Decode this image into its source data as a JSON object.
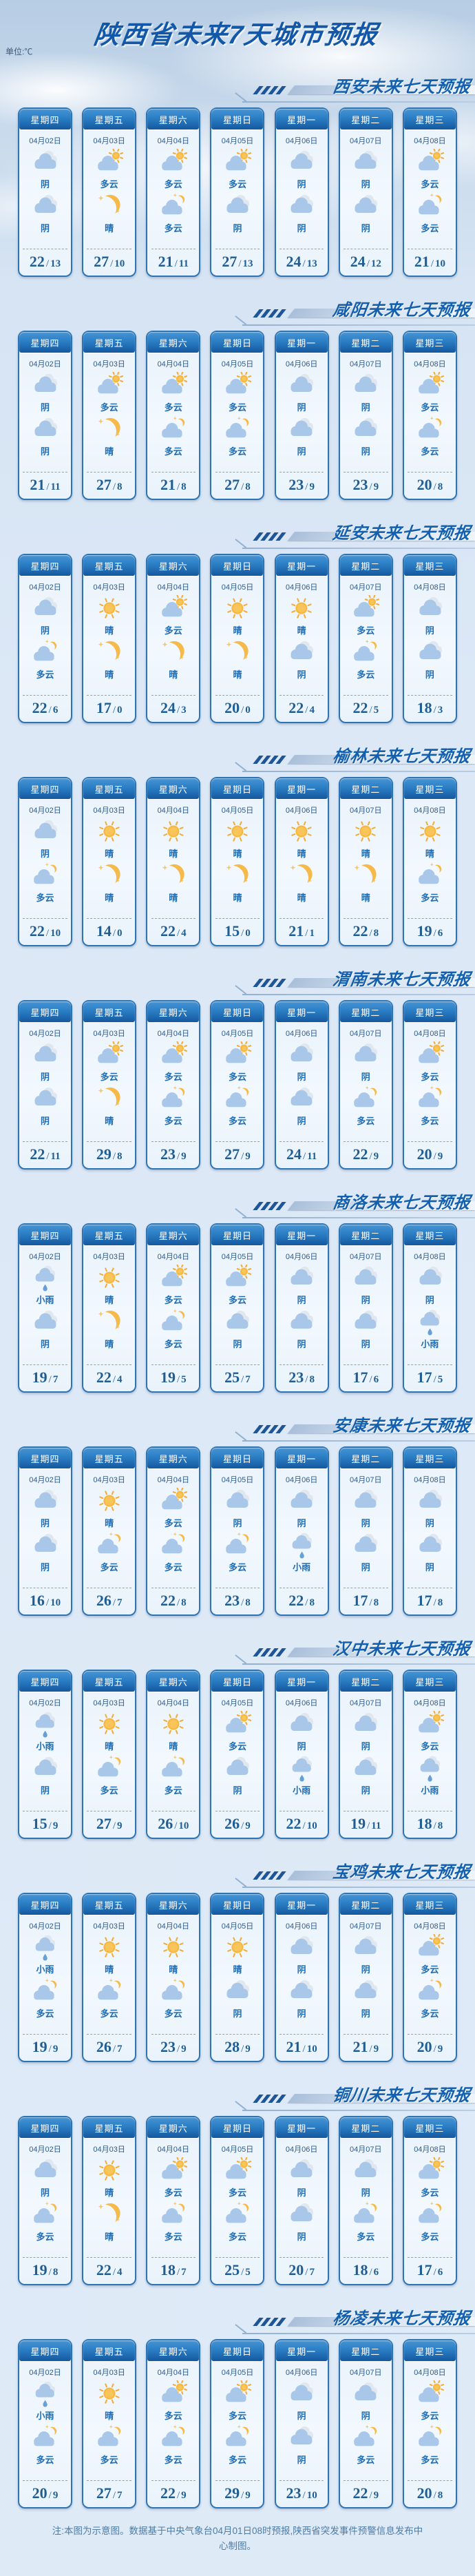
{
  "unit_label": "单位:℃",
  "footer": {
    "note": "注:本图为示意图。数据基于中央气象台04月01日08时预报,陕西省突发事件预警信息发布中心制图。"
  },
  "icons": {
    "晴_day": "sun-icon",
    "晴_night": "moon-icon",
    "多云_day": "sun-behind-cloud-icon",
    "多云_night": "moon-behind-cloud-icon",
    "阴": "cloud-icon",
    "小雨": "rain-cloud-icon"
  },
  "colors": {
    "accent_blue": "#1460ae",
    "card_border": "#2e74b3",
    "card_header_top": "#4694d4",
    "card_header_bottom": "#15589f",
    "weather_text": "#1f6db5",
    "temp_text": "#1f5d92",
    "sun": "#f7b93f",
    "cloud": "#a9c7e9",
    "rain_drop": "#66a0d8",
    "background": "#dfeaf7"
  },
  "chart_data": {
    "type": "table",
    "title": "陕西省未来7天城市预报",
    "unit": "℃",
    "columns": [
      "星期四",
      "星期五",
      "星期六",
      "星期日",
      "星期一",
      "星期二",
      "星期三"
    ],
    "dates": [
      "04月02日",
      "04月03日",
      "04月04日",
      "04月05日",
      "04月06日",
      "04月07日",
      "04月08日"
    ],
    "rows": [
      {
        "city": "西安",
        "section_title": "西安未来七天预报",
        "day_weather": [
          "阴",
          "多云",
          "多云",
          "多云",
          "阴",
          "阴",
          "多云"
        ],
        "night_weather": [
          "阴",
          "晴",
          "多云",
          "阴",
          "阴",
          "阴",
          "多云"
        ],
        "high": [
          22,
          27,
          21,
          27,
          24,
          24,
          21
        ],
        "low": [
          13,
          10,
          11,
          13,
          13,
          12,
          10
        ]
      },
      {
        "city": "咸阳",
        "section_title": "咸阳未来七天预报",
        "day_weather": [
          "阴",
          "多云",
          "多云",
          "多云",
          "阴",
          "阴",
          "多云"
        ],
        "night_weather": [
          "阴",
          "晴",
          "多云",
          "多云",
          "阴",
          "阴",
          "多云"
        ],
        "high": [
          21,
          27,
          21,
          27,
          23,
          23,
          20
        ],
        "low": [
          11,
          8,
          8,
          8,
          9,
          9,
          8
        ]
      },
      {
        "city": "延安",
        "section_title": "延安未来七天预报",
        "day_weather": [
          "阴",
          "晴",
          "多云",
          "晴",
          "晴",
          "多云",
          "阴"
        ],
        "night_weather": [
          "多云",
          "晴",
          "晴",
          "晴",
          "阴",
          "多云",
          "阴"
        ],
        "high": [
          22,
          17,
          24,
          20,
          22,
          22,
          18
        ],
        "low": [
          6,
          0,
          3,
          0,
          4,
          5,
          3
        ]
      },
      {
        "city": "榆林",
        "section_title": "榆林未来七天预报",
        "day_weather": [
          "阴",
          "晴",
          "晴",
          "晴",
          "晴",
          "晴",
          "晴"
        ],
        "night_weather": [
          "多云",
          "晴",
          "晴",
          "晴",
          "晴",
          "晴",
          "多云"
        ],
        "high": [
          22,
          14,
          22,
          15,
          21,
          22,
          19
        ],
        "low": [
          10,
          0,
          4,
          0,
          1,
          8,
          6
        ]
      },
      {
        "city": "渭南",
        "section_title": "渭南未来七天预报",
        "day_weather": [
          "阴",
          "多云",
          "多云",
          "多云",
          "阴",
          "阴",
          "多云"
        ],
        "night_weather": [
          "阴",
          "晴",
          "多云",
          "多云",
          "阴",
          "多云",
          "多云"
        ],
        "high": [
          22,
          29,
          23,
          27,
          24,
          22,
          20
        ],
        "low": [
          11,
          8,
          9,
          9,
          11,
          9,
          9
        ]
      },
      {
        "city": "商洛",
        "section_title": "商洛未来七天预报",
        "day_weather": [
          "小雨",
          "晴",
          "多云",
          "多云",
          "阴",
          "阴",
          "阴"
        ],
        "night_weather": [
          "阴",
          "晴",
          "多云",
          "阴",
          "阴",
          "阴",
          "小雨"
        ],
        "high": [
          19,
          22,
          19,
          25,
          23,
          17,
          17
        ],
        "low": [
          7,
          4,
          5,
          7,
          8,
          6,
          5
        ]
      },
      {
        "city": "安康",
        "section_title": "安康未来七天预报",
        "day_weather": [
          "阴",
          "晴",
          "多云",
          "阴",
          "阴",
          "阴",
          "阴"
        ],
        "night_weather": [
          "阴",
          "多云",
          "多云",
          "多云",
          "小雨",
          "阴",
          "阴"
        ],
        "high": [
          16,
          26,
          22,
          23,
          22,
          17,
          17
        ],
        "low": [
          10,
          7,
          8,
          8,
          8,
          8,
          8
        ]
      },
      {
        "city": "汉中",
        "section_title": "汉中未来七天预报",
        "day_weather": [
          "小雨",
          "晴",
          "晴",
          "多云",
          "阴",
          "阴",
          "多云"
        ],
        "night_weather": [
          "阴",
          "多云",
          "多云",
          "阴",
          "小雨",
          "阴",
          "小雨"
        ],
        "high": [
          15,
          27,
          26,
          26,
          22,
          19,
          18
        ],
        "low": [
          9,
          9,
          10,
          9,
          10,
          11,
          8
        ]
      },
      {
        "city": "宝鸡",
        "section_title": "宝鸡未来七天预报",
        "day_weather": [
          "小雨",
          "晴",
          "晴",
          "晴",
          "阴",
          "阴",
          "多云"
        ],
        "night_weather": [
          "多云",
          "多云",
          "多云",
          "阴",
          "阴",
          "阴",
          "多云"
        ],
        "high": [
          19,
          26,
          23,
          28,
          21,
          21,
          20
        ],
        "low": [
          9,
          7,
          9,
          9,
          10,
          9,
          9
        ]
      },
      {
        "city": "铜川",
        "section_title": "铜川未来七天预报",
        "day_weather": [
          "阴",
          "晴",
          "多云",
          "多云",
          "阴",
          "阴",
          "多云"
        ],
        "night_weather": [
          "多云",
          "晴",
          "多云",
          "多云",
          "阴",
          "多云",
          "多云"
        ],
        "high": [
          19,
          22,
          18,
          25,
          20,
          18,
          17
        ],
        "low": [
          8,
          4,
          7,
          5,
          7,
          6,
          6
        ]
      },
      {
        "city": "杨凌",
        "section_title": "杨凌未来七天预报",
        "day_weather": [
          "小雨",
          "晴",
          "多云",
          "多云",
          "阴",
          "阴",
          "多云"
        ],
        "night_weather": [
          "多云",
          "多云",
          "多云",
          "多云",
          "阴",
          "多云",
          "多云"
        ],
        "high": [
          20,
          27,
          22,
          29,
          23,
          22,
          20
        ],
        "low": [
          9,
          7,
          9,
          9,
          10,
          9,
          8
        ]
      }
    ]
  }
}
